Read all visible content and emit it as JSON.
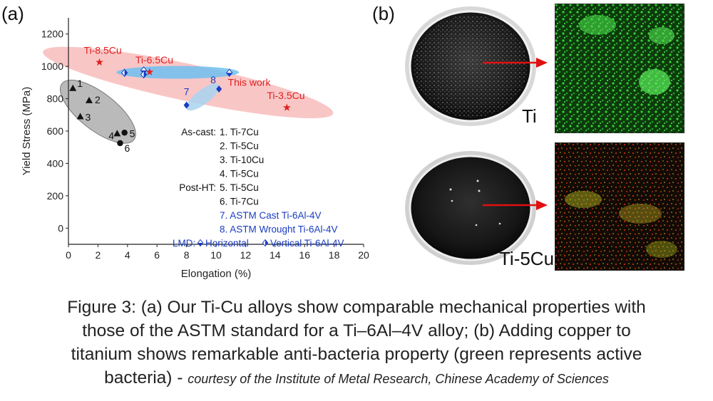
{
  "panels": {
    "a_label": "(a)",
    "b_label": "(b)"
  },
  "chart_data": {
    "type": "scatter",
    "xlabel": "Elongation (%)",
    "ylabel": "Yield Stress (MPa)",
    "xlim": [
      0,
      20
    ],
    "ylim": [
      -100,
      1300
    ],
    "xticks": [
      0,
      2,
      4,
      6,
      8,
      10,
      12,
      14,
      16,
      18,
      20
    ],
    "yticks": [
      0,
      200,
      400,
      600,
      800,
      1000,
      1200
    ],
    "grid": false,
    "series": [
      {
        "group": "as-cast",
        "marker": "triangle",
        "color": "#111111",
        "points": [
          {
            "label": "1",
            "x": 0.3,
            "y": 865
          },
          {
            "label": "2",
            "x": 1.4,
            "y": 790
          },
          {
            "label": "3",
            "x": 0.8,
            "y": 690
          },
          {
            "label": "4",
            "x": 3.3,
            "y": 585
          }
        ]
      },
      {
        "group": "post-ht",
        "marker": "circle",
        "color": "#111111",
        "points": [
          {
            "label": "5",
            "x": 3.8,
            "y": 590
          },
          {
            "label": "6",
            "x": 3.5,
            "y": 525
          }
        ]
      },
      {
        "group": "this-work",
        "marker": "star",
        "color": "#e02020",
        "points": [
          {
            "label": "Ti-8.5Cu",
            "x": 2.1,
            "y": 1025
          },
          {
            "label": "Ti-6.5Cu",
            "x": 5.5,
            "y": 965
          },
          {
            "label": "Ti-3.5Cu",
            "x": 14.8,
            "y": 745
          }
        ]
      },
      {
        "group": "astm",
        "marker": "diamond",
        "color": "#1a3cc0",
        "points": [
          {
            "label": "7",
            "x": 8.0,
            "y": 760
          },
          {
            "label": "8",
            "x": 10.2,
            "y": 860
          }
        ]
      },
      {
        "group": "lmd-horizontal",
        "marker": "diamond-half-top",
        "color": "#1a3cc0",
        "points": [
          {
            "label": "",
            "x": 5.1,
            "y": 975
          },
          {
            "label": "",
            "x": 10.9,
            "y": 960
          }
        ]
      },
      {
        "group": "lmd-vertical",
        "marker": "diamond-half-left",
        "color": "#1a3cc0",
        "points": [
          {
            "label": "",
            "x": 3.8,
            "y": 960
          },
          {
            "label": "",
            "x": 5.1,
            "y": 950
          }
        ]
      }
    ],
    "annotations": {
      "this_work": "This work"
    },
    "legend": {
      "placement": "bottom-right",
      "rows": [
        {
          "prefix": "As-cast:",
          "text": "1. Ti-7Cu",
          "color": "#111111"
        },
        {
          "prefix": "",
          "text": "2. Ti-5Cu",
          "color": "#111111"
        },
        {
          "prefix": "",
          "text": "3. Ti-10Cu",
          "color": "#111111"
        },
        {
          "prefix": "",
          "text": "4. Ti-5Cu",
          "color": "#111111"
        },
        {
          "prefix": "Post-HT:",
          "text": "5. Ti-5Cu",
          "color": "#111111"
        },
        {
          "prefix": "",
          "text": "6. Ti-7Cu",
          "color": "#111111"
        },
        {
          "prefix": "",
          "text": "7. ASTM Cast Ti-6Al-4V",
          "color": "#1a3cc0"
        },
        {
          "prefix": "",
          "text": "8. ASTM Wrought Ti-6Al-4V",
          "color": "#1a3cc0"
        }
      ],
      "lmd_prefix": "LMD:",
      "lmd_horizontal": "Horizontal",
      "lmd_vertical": "Vertical Ti-6Al-4V"
    }
  },
  "photos": {
    "ti_label": "Ti",
    "ticu_label": "Ti-5Cu"
  },
  "caption": {
    "line1": "Figure 3: (a) Our Ti-Cu alloys show comparable mechanical properties with",
    "line2": "those of the ASTM standard for a Ti–6Al–4V alloy; (b) Adding copper to",
    "line3": "titanium shows remarkable anti-bacteria property (green represents active",
    "line4": "bacteria) - ",
    "credit": "courtesy of the Institute of Metal Research, Chinese Academy of Sciences"
  }
}
